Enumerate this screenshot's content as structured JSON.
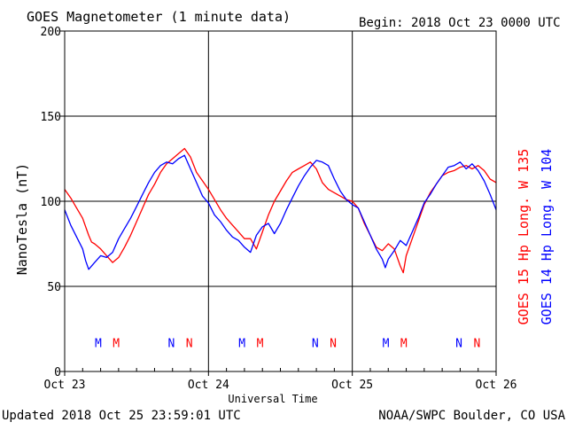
{
  "header": {
    "title": "GOES Magnetometer (1 minute data)",
    "begin": "Begin:  2018 Oct 23 0000 UTC"
  },
  "footer": {
    "updated": "Updated 2018 Oct 25 23:59:01 UTC",
    "credit": "NOAA/SWPC Boulder, CO USA"
  },
  "colors": {
    "goes15": "#ff0000",
    "goes14": "#0000ff",
    "axis": "#000000",
    "grid": "#000000",
    "background": "#ffffff"
  },
  "chart_data": {
    "type": "line",
    "title": "GOES Magnetometer (1 minute data)",
    "xlabel": "Universal Time",
    "ylabel": "NanoTesla (nT)",
    "xlim": [
      0,
      72
    ],
    "ylim": [
      0,
      200
    ],
    "x_unit": "hours since 2018 Oct 23 0000 UTC",
    "xticks": [
      {
        "x": 0,
        "label": "Oct 23"
      },
      {
        "x": 24,
        "label": "Oct 24"
      },
      {
        "x": 48,
        "label": "Oct 25"
      },
      {
        "x": 72,
        "label": "Oct 26"
      }
    ],
    "yticks": [
      0,
      50,
      100,
      150,
      200
    ],
    "grid": true,
    "legend": "right-side vertical",
    "series": [
      {
        "name": "GOES 15 Hp  Long. W 135",
        "color": "#ff0000",
        "x": [
          0,
          1,
          2,
          3,
          4,
          4.5,
          5,
          6,
          7,
          8,
          9,
          10,
          11,
          12,
          13,
          14,
          15,
          16,
          17,
          18,
          19,
          20,
          21,
          22,
          23,
          24,
          25,
          26,
          27,
          28,
          29,
          30,
          31,
          32,
          33,
          34,
          35,
          36,
          37,
          38,
          39,
          40,
          41,
          42,
          43,
          44,
          45,
          46,
          47,
          48,
          49,
          50,
          51,
          52,
          53,
          54,
          55,
          56,
          56.5,
          57,
          58,
          59,
          60,
          61,
          62,
          63,
          64,
          65,
          66,
          67,
          68,
          69,
          70,
          71,
          72
        ],
        "values": [
          107,
          102,
          96,
          90,
          80,
          76,
          75,
          72,
          68,
          64,
          67,
          73,
          80,
          88,
          96,
          104,
          110,
          117,
          122,
          125,
          128,
          131,
          126,
          117,
          112,
          107,
          101,
          95,
          90,
          86,
          82,
          78,
          78,
          72,
          82,
          92,
          100,
          106,
          112,
          117,
          119,
          121,
          123,
          119,
          111,
          107,
          105,
          103,
          101,
          100,
          96,
          87,
          80,
          73,
          71,
          75,
          72,
          62,
          58,
          68,
          78,
          88,
          98,
          105,
          110,
          115,
          117,
          118,
          120,
          121,
          119,
          121,
          118,
          113,
          111
        ]
      },
      {
        "name": "GOES 14 Hp  Long. W 104",
        "color": "#0000ff",
        "x": [
          0,
          1,
          2,
          3,
          3.5,
          4,
          5,
          6,
          7,
          8,
          9,
          10,
          11,
          12,
          13,
          14,
          15,
          16,
          17,
          18,
          19,
          20,
          21,
          22,
          23,
          24,
          25,
          26,
          27,
          28,
          29,
          30,
          31,
          32,
          33,
          34,
          35,
          36,
          37,
          38,
          39,
          40,
          41,
          42,
          43,
          44,
          45,
          46,
          47,
          48,
          49,
          50,
          51,
          52,
          53,
          53.5,
          54,
          55,
          56,
          57,
          58,
          59,
          60,
          61,
          62,
          63,
          64,
          65,
          66,
          67,
          68,
          69,
          70,
          71,
          72
        ],
        "values": [
          95,
          86,
          79,
          72,
          65,
          60,
          64,
          68,
          67,
          70,
          78,
          84,
          90,
          97,
          104,
          111,
          117,
          121,
          123,
          122,
          125,
          127,
          119,
          111,
          103,
          99,
          92,
          88,
          83,
          79,
          77,
          73,
          70,
          80,
          85,
          87,
          81,
          87,
          95,
          102,
          109,
          115,
          120,
          124,
          123,
          121,
          113,
          106,
          101,
          98,
          96,
          88,
          80,
          72,
          66,
          61,
          66,
          71,
          77,
          74,
          82,
          90,
          99,
          104,
          110,
          115,
          120,
          121,
          123,
          119,
          122,
          118,
          112,
          104,
          95
        ]
      }
    ],
    "annotations": [
      {
        "label": "M",
        "x": 5.6,
        "y": 17,
        "color": "#0000ff"
      },
      {
        "label": "M",
        "x": 8.6,
        "y": 17,
        "color": "#ff0000"
      },
      {
        "label": "N",
        "x": 17.8,
        "y": 17,
        "color": "#0000ff"
      },
      {
        "label": "N",
        "x": 20.8,
        "y": 17,
        "color": "#ff0000"
      },
      {
        "label": "M",
        "x": 29.6,
        "y": 17,
        "color": "#0000ff"
      },
      {
        "label": "M",
        "x": 32.6,
        "y": 17,
        "color": "#ff0000"
      },
      {
        "label": "N",
        "x": 41.8,
        "y": 17,
        "color": "#0000ff"
      },
      {
        "label": "N",
        "x": 44.8,
        "y": 17,
        "color": "#ff0000"
      },
      {
        "label": "M",
        "x": 53.6,
        "y": 17,
        "color": "#0000ff"
      },
      {
        "label": "M",
        "x": 56.6,
        "y": 17,
        "color": "#ff0000"
      },
      {
        "label": "N",
        "x": 65.8,
        "y": 17,
        "color": "#0000ff"
      },
      {
        "label": "N",
        "x": 68.8,
        "y": 17,
        "color": "#ff0000"
      }
    ]
  }
}
